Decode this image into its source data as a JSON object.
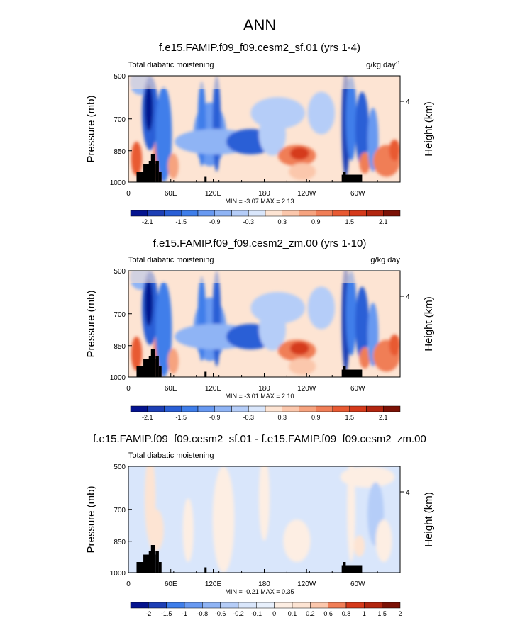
{
  "page_title": "ANN",
  "chart_data": [
    {
      "type": "heatmap",
      "title": "f.e15.FAMIP.f09_f09.cesm2_sf.01 (yrs 1-4)",
      "left_label": "Total diabatic moistening",
      "units": "g/kg day",
      "units_exp": "-1",
      "ylabel": "Pressure (mb)",
      "ylabel_right": "Height (km)",
      "y_ticks": [
        "500",
        "700",
        "850",
        "1000"
      ],
      "y_right_ticks": [
        "4"
      ],
      "x_ticks": [
        "0",
        "60E",
        "120E",
        "180",
        "120W",
        "60W"
      ],
      "stats": "MIN = -3.07  MAX =  2.13",
      "colorbar_labels": [
        "-2.1",
        "-1.5",
        "-0.9",
        "-0.3",
        "0.3",
        "0.9",
        "1.5",
        "2.1"
      ],
      "colorbar_levels": [
        -2.4,
        -2.1,
        -1.8,
        -1.5,
        -1.2,
        -0.9,
        -0.6,
        -0.3,
        0,
        0.3,
        0.6,
        0.9,
        1.2,
        1.5,
        1.8,
        2.1,
        2.4
      ]
    },
    {
      "type": "heatmap",
      "title": "f.e15.FAMIP.f09_f09.cesm2_zm.00 (yrs 1-10)",
      "left_label": "Total diabatic moistening",
      "units": "g/kg day",
      "units_exp": "",
      "ylabel": "Pressure (mb)",
      "ylabel_right": "Height (km)",
      "y_ticks": [
        "500",
        "700",
        "850",
        "1000"
      ],
      "y_right_ticks": [
        "4"
      ],
      "x_ticks": [
        "0",
        "60E",
        "120E",
        "180",
        "120W",
        "60W"
      ],
      "stats": "MIN = -3.01  MAX =  2.10",
      "colorbar_labels": [
        "-2.1",
        "-1.5",
        "-0.9",
        "-0.3",
        "0.3",
        "0.9",
        "1.5",
        "2.1"
      ],
      "colorbar_levels": [
        -2.4,
        -2.1,
        -1.8,
        -1.5,
        -1.2,
        -0.9,
        -0.6,
        -0.3,
        0,
        0.3,
        0.6,
        0.9,
        1.2,
        1.5,
        1.8,
        2.1,
        2.4
      ]
    },
    {
      "type": "heatmap",
      "title": "f.e15.FAMIP.f09_f09.cesm2_sf.01 - f.e15.FAMIP.f09_f09.cesm2_zm.00",
      "left_label": "Total diabatic moistening",
      "units": "",
      "units_exp": "",
      "ylabel": "Pressure (mb)",
      "ylabel_right": "Height (km)",
      "y_ticks": [
        "500",
        "700",
        "850",
        "1000"
      ],
      "y_right_ticks": [
        "4"
      ],
      "x_ticks": [
        "0",
        "60E",
        "120E",
        "180",
        "120W",
        "60W"
      ],
      "stats": "MIN = -0.21  MAX =  0.35",
      "colorbar_labels": [
        "-2",
        "-1.5",
        "-1",
        "-0.8",
        "-0.6",
        "-0.2",
        "-0.1",
        "0",
        "0.1",
        "0.2",
        "0.6",
        "0.8",
        "1",
        "1.5",
        "2"
      ],
      "colorbar_levels": [
        -2,
        -1.5,
        -1,
        -0.8,
        -0.6,
        -0.2,
        -0.1,
        0,
        0.1,
        0.2,
        0.6,
        0.8,
        1,
        1.5,
        2
      ]
    }
  ],
  "colors": {
    "palette_16": [
      "#05148f",
      "#1d3fb5",
      "#2a5fd6",
      "#3f7eea",
      "#6899f1",
      "#8fb4f5",
      "#b5cdf8",
      "#d9e6fb",
      "#fde4d3",
      "#fbc7ac",
      "#f6a37f",
      "#f07e57",
      "#e85a33",
      "#d53a1b",
      "#b22610",
      "#7c1206"
    ],
    "palette_16b": [
      "#05148f",
      "#1d3fb5",
      "#2a5fd6",
      "#3f7eea",
      "#6899f1",
      "#8fb4f5",
      "#b5cdf8",
      "#d9e6fb",
      "#fde4d3",
      "#fbc7ac",
      "#f6a37f",
      "#f07e57",
      "#e85a33",
      "#d53a1b",
      "#b22610",
      "#7c1206"
    ],
    "land": "#000000"
  }
}
